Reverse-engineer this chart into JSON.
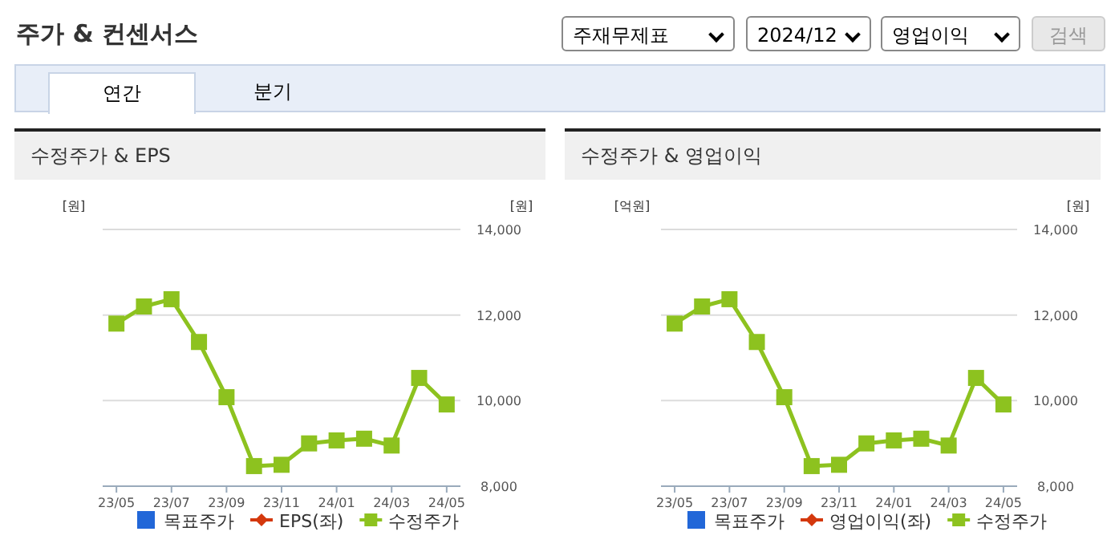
{
  "chart_data": [
    {
      "type": "line",
      "title": "수정주가 & EPS",
      "annotations": [
        "주가 & 컨센서스",
        "주재무제표",
        "2024/12",
        "영업이익",
        "검색",
        "연간",
        "분기"
      ],
      "ylabel": "[원]",
      "y2label": "[원]",
      "categories": [
        "23/05",
        null,
        "23/07",
        null,
        "23/09",
        null,
        "23/11",
        null,
        "24/01",
        null,
        "24/03",
        null,
        "24/05"
      ],
      "y2lim": [
        8000,
        14000
      ],
      "y2ticks": [
        {
          "value": 8000,
          "label": "8,000"
        },
        {
          "value": 10000,
          "label": "10,000"
        },
        {
          "value": 12000,
          "label": "12,000"
        },
        {
          "value": 14000,
          "label": "14,000"
        }
      ],
      "grid": "y",
      "legend": "bottom",
      "series": [
        {
          "name": "목표주가",
          "type": "scatter",
          "marker": "square",
          "color": "#2267d8",
          "values": [
            null,
            null,
            null,
            null,
            null,
            null,
            null,
            null,
            null,
            null,
            null,
            null,
            null
          ]
        },
        {
          "name": "EPS(좌)",
          "type": "line",
          "marker": "diamond",
          "color": "#d4380d",
          "values": [
            null,
            null,
            null,
            null,
            null,
            null,
            null,
            null,
            null,
            null,
            null,
            null,
            null
          ]
        },
        {
          "name": "수정주가",
          "type": "line",
          "marker": "square",
          "axis": "y2",
          "color": "#8dc21f",
          "values": [
            11800,
            12200,
            12370,
            11370,
            10080,
            8470,
            8500,
            9000,
            9070,
            9110,
            8950,
            10530,
            9910
          ]
        }
      ]
    },
    {
      "type": "line",
      "title": "수정주가 & 영업이익",
      "ylabel": "[억원]",
      "y2label": "[원]",
      "categories": [
        "23/05",
        null,
        "23/07",
        null,
        "23/09",
        null,
        "23/11",
        null,
        "24/01",
        null,
        "24/03",
        null,
        "24/05"
      ],
      "y2lim": [
        8000,
        14000
      ],
      "y2ticks": [
        {
          "value": 8000,
          "label": "8,000"
        },
        {
          "value": 10000,
          "label": "10,000"
        },
        {
          "value": 12000,
          "label": "12,000"
        },
        {
          "value": 14000,
          "label": "14,000"
        }
      ],
      "grid": "y",
      "legend": "bottom",
      "series": [
        {
          "name": "목표주가",
          "type": "scatter",
          "marker": "square",
          "color": "#2267d8",
          "values": [
            null,
            null,
            null,
            null,
            null,
            null,
            null,
            null,
            null,
            null,
            null,
            null,
            null
          ]
        },
        {
          "name": "영업이익(좌)",
          "type": "line",
          "marker": "diamond",
          "color": "#d4380d",
          "values": [
            null,
            null,
            null,
            null,
            null,
            null,
            null,
            null,
            null,
            null,
            null,
            null,
            null
          ]
        },
        {
          "name": "수정주가",
          "type": "line",
          "marker": "square",
          "axis": "y2",
          "color": "#8dc21f",
          "values": [
            11800,
            12200,
            12370,
            11370,
            10080,
            8470,
            8500,
            9000,
            9070,
            9110,
            8950,
            10530,
            9910
          ]
        }
      ]
    }
  ]
}
